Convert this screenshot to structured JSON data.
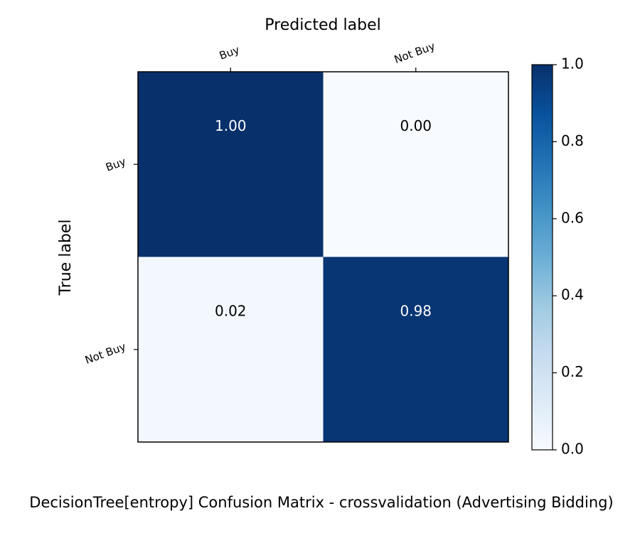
{
  "chart_data": {
    "type": "heatmap",
    "title": "DecisionTree[entropy] Confusion Matrix - crossvalidation (Advertising Bidding)",
    "xlabel": "Predicted label",
    "ylabel": "True label",
    "x_categories": [
      "Buy",
      "Not Buy"
    ],
    "y_categories": [
      "Buy",
      "Not Buy"
    ],
    "values": [
      [
        1.0,
        0.0
      ],
      [
        0.02,
        0.98
      ]
    ],
    "cell_labels": [
      [
        "1.00",
        "0.00"
      ],
      [
        "0.02",
        "0.98"
      ]
    ],
    "colormap": "Blues",
    "colorbar": {
      "range": [
        0.0,
        1.0
      ],
      "ticks": [
        "0.0",
        "0.2",
        "0.4",
        "0.6",
        "0.8",
        "1.0"
      ]
    },
    "colors": {
      "low": "#f7fbff",
      "high": "#08306b",
      "text_dark_bg": "#ffffff",
      "text_light_bg": "#000000"
    }
  }
}
